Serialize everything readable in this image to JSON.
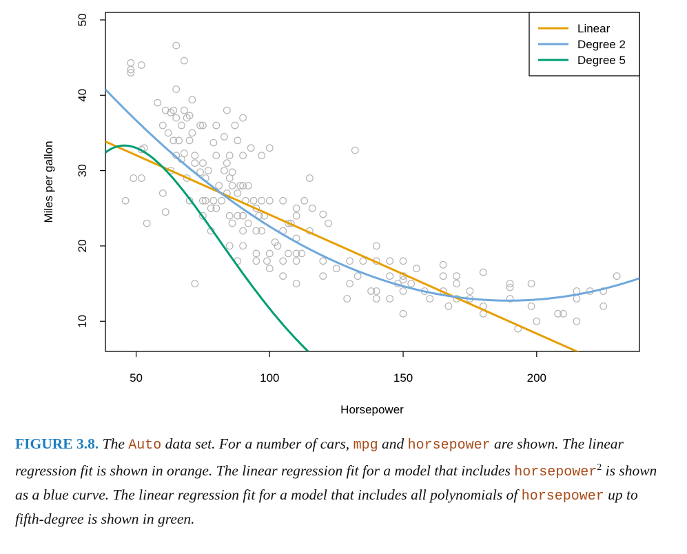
{
  "chart_data": {
    "type": "scatter",
    "xlabel": "Horsepower",
    "ylabel": "Miles per gallon",
    "xlim": [
      38.5,
      238.5
    ],
    "ylim": [
      6,
      51
    ],
    "x_ticks": [
      50,
      100,
      150,
      200
    ],
    "y_ticks": [
      10,
      20,
      30,
      40,
      50
    ],
    "legend_position": "top-right",
    "grid": false,
    "colors": {
      "points": "#b3b3b3",
      "linear": "#e69f00",
      "degree2": "#6fa8dc",
      "degree5": "#009e73"
    },
    "points": [
      [
        46,
        26
      ],
      [
        48,
        43
      ],
      [
        48,
        43.4
      ],
      [
        48,
        44.3
      ],
      [
        49,
        29
      ],
      [
        52,
        29
      ],
      [
        52,
        32.8
      ],
      [
        52,
        44
      ],
      [
        53,
        33
      ],
      [
        54,
        23
      ],
      [
        58,
        39
      ],
      [
        60,
        36
      ],
      [
        60,
        27
      ],
      [
        61,
        38
      ],
      [
        61,
        24.5
      ],
      [
        62,
        35
      ],
      [
        63,
        37.7
      ],
      [
        63,
        30
      ],
      [
        64,
        38
      ],
      [
        64,
        34
      ],
      [
        65,
        46.6
      ],
      [
        65,
        40.8
      ],
      [
        65,
        37
      ],
      [
        65,
        32
      ],
      [
        66,
        34
      ],
      [
        67,
        36
      ],
      [
        67,
        31.5
      ],
      [
        68,
        44.6
      ],
      [
        68,
        38
      ],
      [
        68,
        32.3
      ],
      [
        69,
        37
      ],
      [
        69,
        29
      ],
      [
        70,
        37.3
      ],
      [
        70,
        34
      ],
      [
        70,
        26
      ],
      [
        71,
        39.4
      ],
      [
        71,
        35
      ],
      [
        72,
        32
      ],
      [
        72,
        31
      ],
      [
        72,
        15
      ],
      [
        74,
        36
      ],
      [
        74,
        29.8
      ],
      [
        75,
        36
      ],
      [
        75,
        31
      ],
      [
        75,
        26
      ],
      [
        75,
        24
      ],
      [
        76,
        29
      ],
      [
        76,
        26
      ],
      [
        77,
        30
      ],
      [
        78,
        25
      ],
      [
        78,
        22
      ],
      [
        79,
        33.7
      ],
      [
        79,
        26
      ],
      [
        80,
        36
      ],
      [
        80,
        32
      ],
      [
        80,
        25
      ],
      [
        81,
        28
      ],
      [
        82,
        26
      ],
      [
        83,
        34.5
      ],
      [
        83,
        30
      ],
      [
        84,
        38
      ],
      [
        84,
        31
      ],
      [
        84,
        27
      ],
      [
        85,
        32
      ],
      [
        85,
        29
      ],
      [
        85,
        24
      ],
      [
        85,
        20
      ],
      [
        86,
        29.8
      ],
      [
        86,
        28
      ],
      [
        86,
        23
      ],
      [
        87,
        36
      ],
      [
        88,
        34
      ],
      [
        88,
        27
      ],
      [
        88,
        24
      ],
      [
        88,
        18
      ],
      [
        89,
        28
      ],
      [
        90,
        37
      ],
      [
        90,
        32
      ],
      [
        90,
        28
      ],
      [
        90,
        24
      ],
      [
        90,
        22
      ],
      [
        90,
        20
      ],
      [
        91,
        26
      ],
      [
        92,
        28
      ],
      [
        92,
        23
      ],
      [
        93,
        33
      ],
      [
        94,
        26
      ],
      [
        95,
        25
      ],
      [
        95,
        22
      ],
      [
        95,
        19
      ],
      [
        95,
        18
      ],
      [
        96,
        24
      ],
      [
        97,
        32
      ],
      [
        97,
        26
      ],
      [
        97,
        22
      ],
      [
        98,
        24
      ],
      [
        99,
        18
      ],
      [
        100,
        33
      ],
      [
        100,
        26
      ],
      [
        100,
        19
      ],
      [
        100,
        17
      ],
      [
        102,
        20.5
      ],
      [
        103,
        20
      ],
      [
        105,
        26
      ],
      [
        105,
        22
      ],
      [
        105,
        18
      ],
      [
        105,
        16
      ],
      [
        107,
        23
      ],
      [
        107,
        19
      ],
      [
        108,
        23
      ],
      [
        110,
        25
      ],
      [
        110,
        24
      ],
      [
        110,
        21
      ],
      [
        110,
        19
      ],
      [
        110,
        18
      ],
      [
        110,
        15
      ],
      [
        112,
        19
      ],
      [
        113,
        26
      ],
      [
        115,
        29
      ],
      [
        115,
        22
      ],
      [
        116,
        25
      ],
      [
        120,
        24.2
      ],
      [
        120,
        18
      ],
      [
        120,
        16
      ],
      [
        122,
        23
      ],
      [
        125,
        17
      ],
      [
        129,
        13
      ],
      [
        130,
        18
      ],
      [
        130,
        15
      ],
      [
        132,
        32.7
      ],
      [
        133,
        16
      ],
      [
        135,
        18
      ],
      [
        138,
        14
      ],
      [
        140,
        20
      ],
      [
        140,
        18
      ],
      [
        140,
        14
      ],
      [
        140,
        13
      ],
      [
        145,
        18
      ],
      [
        145,
        16
      ],
      [
        145,
        13
      ],
      [
        148,
        15
      ],
      [
        150,
        18
      ],
      [
        150,
        16
      ],
      [
        150,
        14
      ],
      [
        150,
        11
      ],
      [
        150,
        15.5
      ],
      [
        153,
        15
      ],
      [
        155,
        17
      ],
      [
        158,
        14
      ],
      [
        160,
        13
      ],
      [
        165,
        16
      ],
      [
        165,
        14
      ],
      [
        165,
        17.5
      ],
      [
        167,
        12
      ],
      [
        170,
        16
      ],
      [
        170,
        15
      ],
      [
        170,
        13
      ],
      [
        175,
        14
      ],
      [
        175,
        13
      ],
      [
        180,
        12
      ],
      [
        180,
        16.5
      ],
      [
        180,
        11
      ],
      [
        190,
        15
      ],
      [
        190,
        14.5
      ],
      [
        190,
        13
      ],
      [
        193,
        9
      ],
      [
        198,
        15
      ],
      [
        198,
        12
      ],
      [
        200,
        10
      ],
      [
        208,
        11
      ],
      [
        210,
        11
      ],
      [
        215,
        14
      ],
      [
        215,
        13
      ],
      [
        215,
        10
      ],
      [
        220,
        14
      ],
      [
        225,
        12
      ],
      [
        225,
        14
      ],
      [
        230,
        16
      ]
    ],
    "series": [
      {
        "name": "Linear",
        "degree": 1,
        "coefficients": [
          39.9359,
          -0.157845
        ]
      },
      {
        "name": "Degree 2",
        "degree": 2,
        "coefficients": [
          56.9,
          -0.46619,
          0.0012305
        ]
      },
      {
        "name": "Degree 5",
        "degree": 5,
        "coefficients": [
          -32.2306,
          3.7001,
          -0.071424,
          0.00056708,
          -2.0794e-06,
          2.9e-09
        ]
      }
    ]
  },
  "caption": {
    "label": "FIGURE 3.8.",
    "parts": [
      {
        "text": " The ",
        "code": false
      },
      {
        "text": "Auto",
        "code": true
      },
      {
        "text": " data set. For a number of cars, ",
        "code": false
      },
      {
        "text": "mpg",
        "code": true
      },
      {
        "text": " and ",
        "code": false
      },
      {
        "text": "horsepower",
        "code": true
      },
      {
        "text": " are shown. The linear regression fit is shown in orange. The linear regression fit for a model that includes ",
        "code": false
      },
      {
        "text": "horsepower",
        "code": true
      },
      {
        "text": "2",
        "sup": true
      },
      {
        "text": " is shown as a blue curve. The linear regression fit for a model that includes all polynomials of ",
        "code": false
      },
      {
        "text": "horsepower",
        "code": true
      },
      {
        "text": " up to fifth-degree is shown in green.",
        "code": false
      }
    ]
  }
}
